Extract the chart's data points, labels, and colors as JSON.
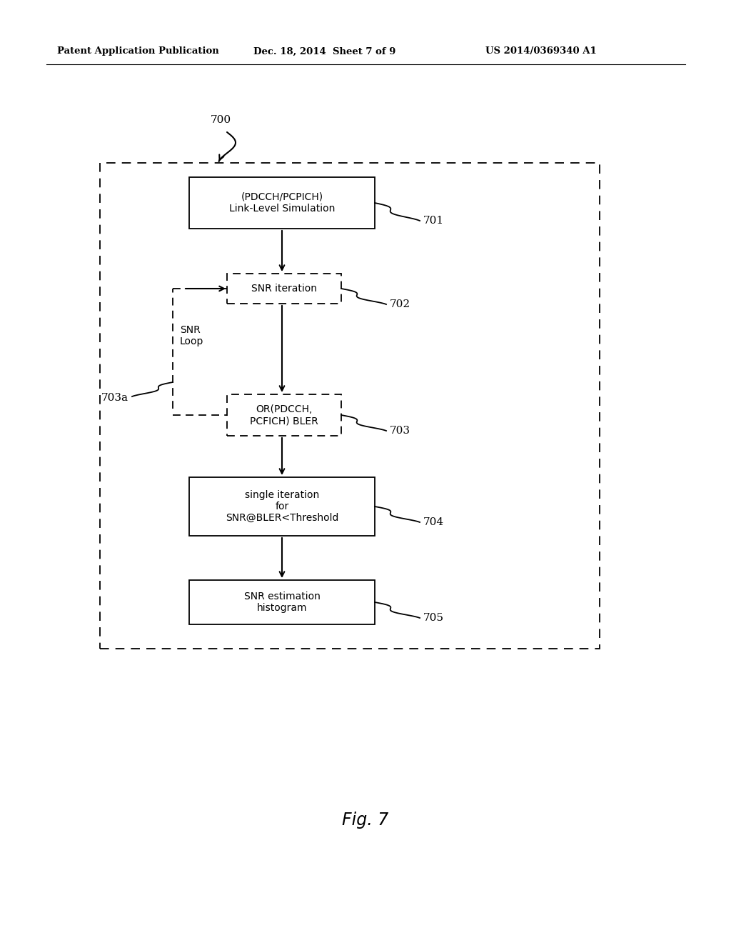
{
  "bg_color": "#ffffff",
  "header_left": "Patent Application Publication",
  "header_mid": "Dec. 18, 2014  Sheet 7 of 9",
  "header_right": "US 2014/0369340 A1",
  "fig_label": "Fig. 7",
  "label_700": "700",
  "label_701": "701",
  "label_702": "702",
  "label_703": "703",
  "label_703a": "703a",
  "label_704": "704",
  "label_705": "705",
  "box701_text": "(PDCCH/PCPICH)\nLink-Level Simulation",
  "box702_text": "SNR iteration",
  "box703_text": "OR(PDCCH,\nPCFICH) BLER",
  "box704_text": "single iteration\nfor\nSNR@BLER<Threshold",
  "box705_text": "SNR estimation\nhistogram",
  "snr_loop_text": "SNR\nLoop"
}
